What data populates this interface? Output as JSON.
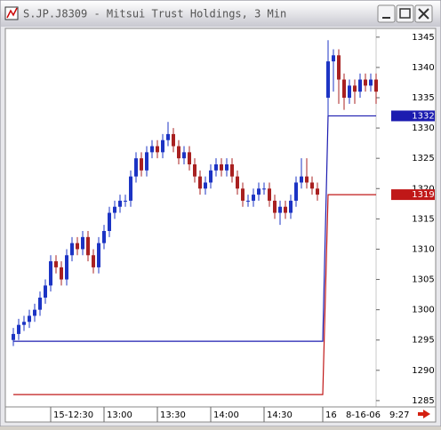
{
  "chart_data": {
    "type": "candlestick",
    "title": "S.JP.J8309 - Mitsui Trust Holdings, 3 Min",
    "categories": [
      null,
      null,
      null,
      null,
      null,
      null,
      null,
      "15-12:30",
      null,
      null,
      null,
      null,
      null,
      null,
      null,
      null,
      null,
      "13:00",
      null,
      null,
      null,
      null,
      null,
      null,
      null,
      null,
      null,
      "13:30",
      null,
      null,
      null,
      null,
      null,
      null,
      null,
      null,
      null,
      "14:00",
      null,
      null,
      null,
      null,
      null,
      null,
      null,
      null,
      null,
      "14:30",
      null,
      null,
      null,
      null,
      null,
      null,
      null,
      null,
      null,
      null,
      "16",
      null,
      null,
      null,
      null,
      null,
      null,
      null,
      null,
      null,
      null
    ],
    "open": [
      1295,
      1296,
      1297.5,
      1298,
      1299,
      1300,
      1302,
      1304,
      1308,
      1307,
      1305,
      1309,
      1311,
      1310,
      1312,
      1309,
      1307,
      1311,
      1313,
      1316,
      1317,
      1318,
      1318,
      1322,
      1325,
      1323,
      1326,
      1327,
      1326,
      1328,
      1329,
      1327,
      1325,
      1326,
      1324,
      1322,
      1320,
      1321,
      1323,
      1324,
      1323,
      1324,
      1322,
      1320,
      1318,
      1318,
      1319,
      1320,
      1320,
      1318,
      1316,
      1317,
      1316,
      1318,
      1321,
      1322,
      1321,
      1320,
      null,
      1335,
      1341,
      1342,
      1338,
      1335,
      1337,
      1336,
      1338,
      1337,
      1338
    ],
    "high": [
      1297,
      1298.5,
      1299,
      1300,
      1301,
      1303,
      1305,
      1309,
      1309,
      1308,
      1310,
      1312,
      1312,
      1313,
      1313,
      1310,
      1312,
      1314,
      1317,
      1318,
      1319,
      1319,
      1323,
      1326,
      1326,
      1327,
      1328,
      1328,
      1329,
      1331,
      1330,
      1328,
      1327,
      1327,
      1325,
      1323,
      1322,
      1324,
      1325,
      1325,
      1325,
      1325,
      1323,
      1321,
      1319,
      1320,
      1321,
      1321,
      1321,
      1319,
      1318,
      1318,
      1319,
      1322,
      1325,
      1325,
      1322,
      1321,
      null,
      1344.5,
      1343,
      1343,
      1339,
      1338,
      1338,
      1339,
      1339,
      1339,
      1339
    ],
    "low": [
      1294,
      1295,
      1296.5,
      1297,
      1298,
      1299,
      1301,
      1303,
      1306,
      1304,
      1304,
      1308,
      1309,
      1309,
      1308,
      1306,
      1306,
      1310,
      1312,
      1315,
      1316,
      1317,
      1317,
      1321,
      1322,
      1322,
      1325,
      1325,
      1325,
      1327,
      1326,
      1324,
      1324,
      1323,
      1321,
      1319,
      1319,
      1320,
      1322,
      1322,
      1322,
      1321,
      1319,
      1317,
      1317,
      1317,
      1318,
      1319,
      1317,
      1315,
      1314,
      1315,
      1315,
      1317,
      1320,
      1320,
      1319,
      1318,
      null,
      1332,
      1336,
      1334,
      1333,
      1334,
      1334,
      1335,
      1336,
      1336,
      1334
    ],
    "close": [
      1296,
      1297.5,
      1298,
      1299,
      1300,
      1302,
      1304,
      1308,
      1307,
      1305,
      1309,
      1311,
      1310,
      1312,
      1309,
      1307,
      1311,
      1313,
      1316,
      1317,
      1318,
      1318,
      1322,
      1325,
      1323,
      1326,
      1327,
      1326,
      1328,
      1329,
      1327,
      1325,
      1326,
      1324,
      1322,
      1320,
      1321,
      1323,
      1324,
      1323,
      1324,
      1322,
      1320,
      1318,
      1318,
      1319,
      1320,
      1320,
      1318,
      1316,
      1317,
      1316,
      1318,
      1321,
      1322,
      1321,
      1320,
      1319,
      null,
      1341,
      1342,
      1338,
      1335,
      1337,
      1336,
      1338,
      1337,
      1338,
      1336
    ],
    "up_color": "#1c34c4",
    "down_color": "#a82020",
    "series": [
      {
        "color": "#1c1cb0",
        "values": [
          1294.8,
          1294.8,
          1294.8,
          1294.8,
          1294.8,
          1294.8,
          1294.8,
          1294.8,
          1294.8,
          1294.8,
          1294.8,
          1294.8,
          1294.8,
          1294.8,
          1294.8,
          1294.8,
          1294.8,
          1294.8,
          1294.8,
          1294.8,
          1294.8,
          1294.8,
          1294.8,
          1294.8,
          1294.8,
          1294.8,
          1294.8,
          1294.8,
          1294.8,
          1294.8,
          1294.8,
          1294.8,
          1294.8,
          1294.8,
          1294.8,
          1294.8,
          1294.8,
          1294.8,
          1294.8,
          1294.8,
          1294.8,
          1294.8,
          1294.8,
          1294.8,
          1294.8,
          1294.8,
          1294.8,
          1294.8,
          1294.8,
          1294.8,
          1294.8,
          1294.8,
          1294.8,
          1294.8,
          1294.8,
          1294.8,
          1294.8,
          1294.8,
          1294.8,
          1332,
          1332,
          1332,
          1332,
          1332,
          1332,
          1332,
          1332,
          1332,
          1332
        ]
      },
      {
        "color": "#c01818",
        "values": [
          1286,
          1286,
          1286,
          1286,
          1286,
          1286,
          1286,
          1286,
          1286,
          1286,
          1286,
          1286,
          1286,
          1286,
          1286,
          1286,
          1286,
          1286,
          1286,
          1286,
          1286,
          1286,
          1286,
          1286,
          1286,
          1286,
          1286,
          1286,
          1286,
          1286,
          1286,
          1286,
          1286,
          1286,
          1286,
          1286,
          1286,
          1286,
          1286,
          1286,
          1286,
          1286,
          1286,
          1286,
          1286,
          1286,
          1286,
          1286,
          1286,
          1286,
          1286,
          1286,
          1286,
          1286,
          1286,
          1286,
          1286,
          1286,
          1286,
          1319,
          1319,
          1319,
          1319,
          1319,
          1319,
          1319,
          1319,
          1319,
          1319
        ]
      }
    ],
    "ylim": [
      1284.4,
      1346
    ],
    "yticks": [
      1285,
      1290,
      1295,
      1300,
      1305,
      1310,
      1315,
      1320,
      1325,
      1330,
      1335,
      1340,
      1345
    ],
    "cursor_date": "8-16-06",
    "cursor_time": "9:27"
  }
}
